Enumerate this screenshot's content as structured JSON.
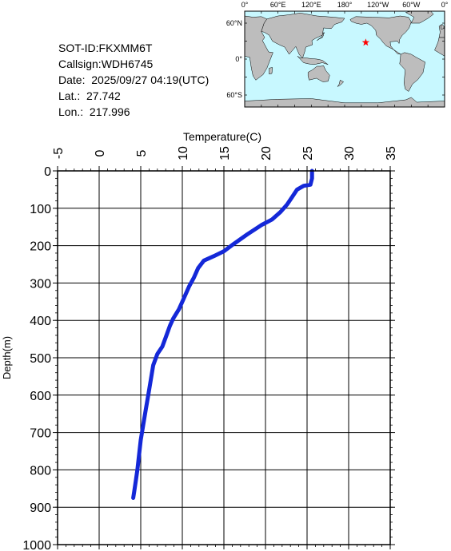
{
  "info": {
    "sot_id": "SOT-ID:FKXMM6T",
    "callsign": "Callsign:WDH6745",
    "date": "Date:  2025/09/27 04:19(UTC)",
    "lat": "Lat.:  27.742",
    "lon": "Lon.:  217.996"
  },
  "map": {
    "lon_labels": [
      "0°",
      "60°E",
      "120°E",
      "180°",
      "120°W",
      "60°W",
      "0°"
    ],
    "lat_labels": [
      "60°N",
      "0°",
      "60°S"
    ],
    "marker": {
      "lat": 27.742,
      "lon": 217.996,
      "color": "#ff0000"
    },
    "ocean_color": "#c8f8ff",
    "land_color": "#bdbdbd"
  },
  "chart_data": {
    "type": "line",
    "xlabel": "Temperature(C)",
    "ylabel": "Depth(m)",
    "xlim": [
      -5,
      35
    ],
    "ylim": [
      0,
      1000
    ],
    "x_ticks": [
      -5,
      0,
      5,
      10,
      15,
      20,
      25,
      30,
      35
    ],
    "y_ticks": [
      0,
      100,
      200,
      300,
      400,
      500,
      600,
      700,
      800,
      900,
      1000
    ],
    "grid": true,
    "color": "#1428d8",
    "series": [
      {
        "x": [
          25.6,
          25.6,
          25.4,
          24.6,
          23.8,
          23.2,
          22.6,
          21.8,
          20.8,
          19.5,
          17.8,
          16.2,
          15.0,
          13.8,
          12.6,
          11.9,
          11.4,
          10.8,
          10.2,
          9.6,
          8.9,
          8.5,
          8.1,
          7.6,
          7.0,
          6.5,
          6.2,
          5.9,
          5.6,
          5.3,
          5.0,
          4.8,
          4.6,
          4.4,
          4.2,
          4.1
        ],
        "y": [
          0,
          20,
          37,
          40,
          50,
          70,
          90,
          110,
          130,
          145,
          170,
          195,
          215,
          228,
          240,
          260,
          285,
          310,
          340,
          370,
          395,
          415,
          440,
          470,
          490,
          520,
          560,
          600,
          640,
          680,
          720,
          760,
          800,
          830,
          860,
          875
        ]
      }
    ]
  }
}
